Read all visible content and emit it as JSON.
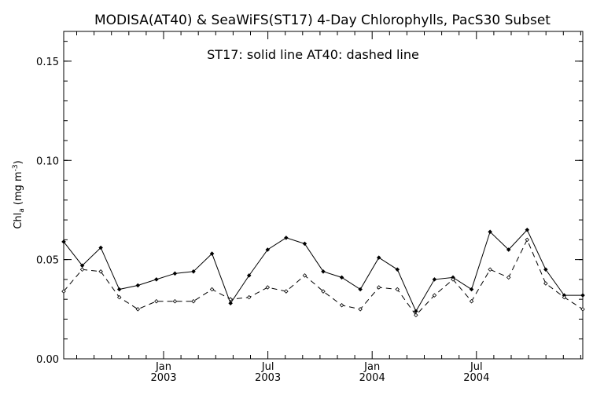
{
  "chart_data": {
    "type": "line",
    "title": "MODISA(AT40) & SeaWiFS(ST17) 4-Day Chlorophylls, PacS30 Subset",
    "annotation": "ST17: solid line   AT40: dashed line",
    "ylabel_main": "Chl",
    "ylabel_sub": "a",
    "ylabel_unit": "(mg m",
    "ylabel_exp": "-3",
    "ylabel_close": ")",
    "ylim": [
      0,
      0.165
    ],
    "yticks": [
      {
        "value": 0.0,
        "label": "0.00"
      },
      {
        "value": 0.05,
        "label": "0.05"
      },
      {
        "value": 0.1,
        "label": "0.10"
      },
      {
        "value": 0.15,
        "label": "0.15"
      }
    ],
    "xticks": [
      {
        "month": "Jan",
        "year": "2003"
      },
      {
        "month": "Jul",
        "year": "2003"
      },
      {
        "month": "Jan",
        "year": "2004"
      },
      {
        "month": "Jul",
        "year": "2004"
      }
    ],
    "grid": false,
    "legend": "none",
    "series": [
      {
        "style": "solid",
        "values": [
          0.059,
          0.047,
          0.056,
          0.035,
          0.037,
          0.04,
          0.043,
          0.044,
          0.053,
          0.028,
          0.042,
          0.055,
          0.061,
          0.058,
          0.044,
          0.041,
          0.035,
          0.051,
          0.045,
          0.024,
          0.04,
          0.041,
          0.035,
          0.064,
          0.055,
          0.065,
          0.045,
          0.032,
          0.032
        ]
      },
      {
        "style": "dashed",
        "values": [
          0.034,
          0.045,
          0.044,
          0.031,
          0.025,
          0.029,
          0.029,
          0.029,
          0.035,
          0.03,
          0.031,
          0.036,
          0.034,
          0.042,
          0.034,
          0.027,
          0.025,
          0.036,
          0.035,
          0.022,
          0.032,
          0.04,
          0.029,
          0.045,
          0.041,
          0.06,
          0.038,
          0.031,
          0.025
        ]
      }
    ]
  }
}
